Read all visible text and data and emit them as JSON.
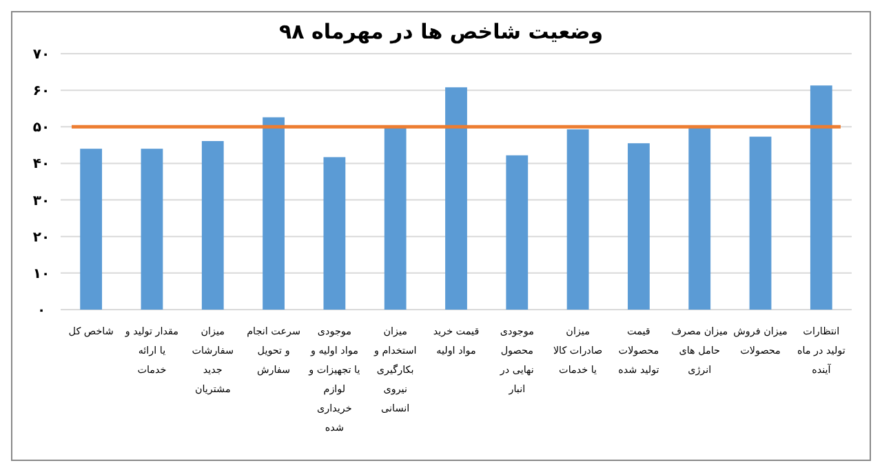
{
  "chart_data": {
    "type": "bar",
    "title": "وضعیت شاخص ها در مهرماه ۹۸",
    "categories": [
      "شاخص کل",
      "مقدار تولید و\nیا ارائه\nخدمات",
      "میزان\nسفارشات\nجدید\nمشتریان",
      "سرعت انجام\nو تحویل\nسفارش",
      "موجودی\nمواد اولیه و\nیا تجهیزات و\nلوازم\nخریداری\nشده",
      "میزان\nاستخدام و\nبکارگیری\nنیروی\nانسانی",
      "قیمت خرید\nمواد اولیه",
      "موجودی\nمحصول\nنهایی در\nانبار",
      "میزان\nصادرات کالا\nیا خدمات",
      "قیمت\nمحصولات\nتولید شده",
      "میزان مصرف\nحامل های\nانرژی",
      "میزان فروش\nمحصولات",
      "انتظارات\nتولید در ماه\nآینده"
    ],
    "values": [
      44.0,
      44.0,
      46.1,
      52.6,
      41.7,
      50.1,
      60.8,
      42.2,
      49.3,
      45.5,
      50.1,
      47.3,
      61.3
    ],
    "color": "#5b9bd5",
    "ylim": [
      0,
      70
    ],
    "yticks": [
      {
        "value": 0,
        "label": "۰"
      },
      {
        "value": 10,
        "label": "۱۰"
      },
      {
        "value": 20,
        "label": "۲۰"
      },
      {
        "value": 30,
        "label": "۳۰"
      },
      {
        "value": 40,
        "label": "۴۰"
      },
      {
        "value": 50,
        "label": "۵۰"
      },
      {
        "value": 60,
        "label": "۶۰"
      },
      {
        "value": 70,
        "label": "۷۰"
      }
    ],
    "grid": "y",
    "ref_lines": [
      {
        "axis": "y",
        "value": 50,
        "color": "#ed7d31"
      }
    ]
  }
}
